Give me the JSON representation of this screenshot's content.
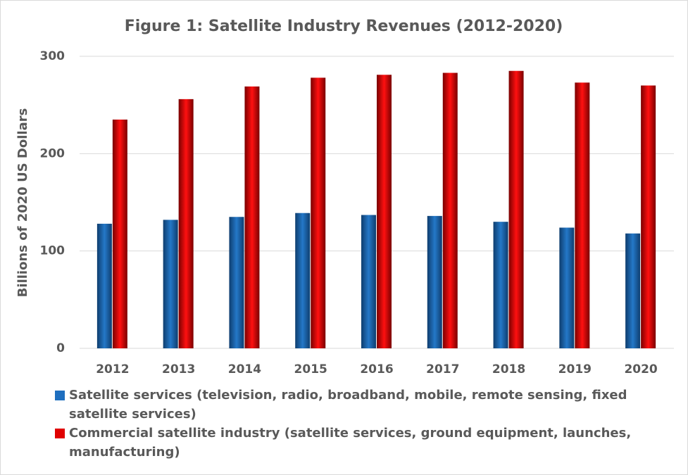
{
  "chart_data": {
    "type": "bar",
    "title": "Figure 1: Satellite Industry Revenues (2012-2020)",
    "y_label": "Billions of 2020 US Dollars",
    "categories": [
      "2012",
      "2013",
      "2014",
      "2015",
      "2016",
      "2017",
      "2018",
      "2019",
      "2020"
    ],
    "series": [
      {
        "name": "Satellite services (television, radio, broadband, mobile, remote sensing, fixed satellite services)",
        "color": "#1f6fbf",
        "values": [
          128,
          132,
          135,
          139,
          137,
          136,
          130,
          124,
          118
        ]
      },
      {
        "name": "Commercial satellite industry (satellite services, ground equipment, launches, manufacturing)",
        "color": "#e00000",
        "values": [
          235,
          256,
          269,
          278,
          281,
          283,
          285,
          273,
          270
        ]
      }
    ],
    "ylim": [
      0,
      300
    ],
    "yticks": [
      0,
      100,
      200,
      300
    ],
    "grid": true,
    "legend": "bottom"
  }
}
